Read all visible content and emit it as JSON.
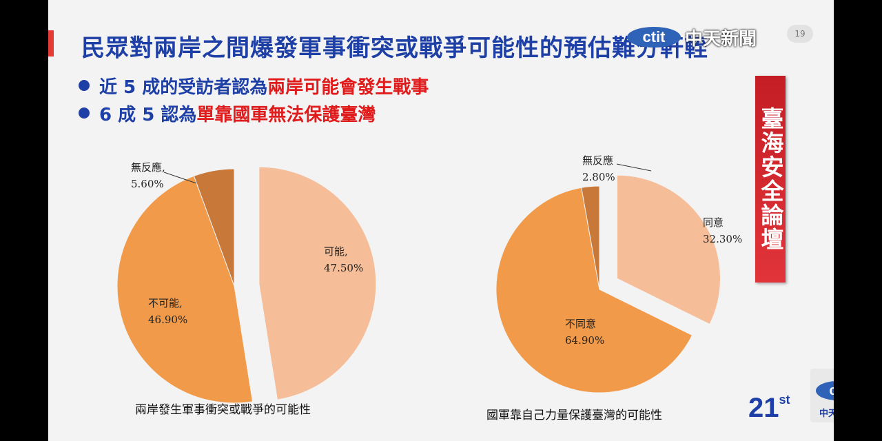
{
  "slide": {
    "title": "民眾對兩岸之間爆發軍事衝突或戰爭可能性的預估難分軒輊",
    "page_number": "19",
    "bullets": [
      {
        "prefix": "近 5 成的受訪者認為",
        "highlight": "兩岸可能會發生戰事"
      },
      {
        "prefix": "6 成 5 認為",
        "highlight": "單靠國軍無法保護臺灣"
      }
    ],
    "banner": "臺海安全論壇"
  },
  "branding": {
    "station_logo": "ctit",
    "station_name": "中天新聞",
    "foot_logo_num": "21",
    "foot_logo_sup": "st",
    "cti_logo": "cti",
    "cti_name": "中天電視"
  },
  "colors": {
    "light": "#f5bd98",
    "orange": "#f19a4a",
    "brown": "#c87839",
    "title_blue": "#1d3fa6",
    "highlight_red": "#e01b1b"
  },
  "chart_data": [
    {
      "type": "pie",
      "caption": "兩岸發生軍事衝突或戰爭的可能性",
      "slices": [
        {
          "label": "可能,",
          "value": 47.5,
          "display": "47.50%",
          "color": "#f5bd98"
        },
        {
          "label": "不可能,",
          "value": 46.9,
          "display": "46.90%",
          "color": "#f19a4a"
        },
        {
          "label": "無反應,",
          "value": 5.6,
          "display": "5.60%",
          "color": "#c87839"
        }
      ]
    },
    {
      "type": "pie",
      "caption": "國軍靠自己力量保護臺灣的可能性",
      "slices": [
        {
          "label": "同意",
          "value": 32.3,
          "display": "32.30%",
          "color": "#f5bd98"
        },
        {
          "label": "不同意",
          "value": 64.9,
          "display": "64.90%",
          "color": "#f19a4a"
        },
        {
          "label": "無反應",
          "value": 2.8,
          "display": "2.80%",
          "color": "#c87839"
        }
      ]
    }
  ]
}
